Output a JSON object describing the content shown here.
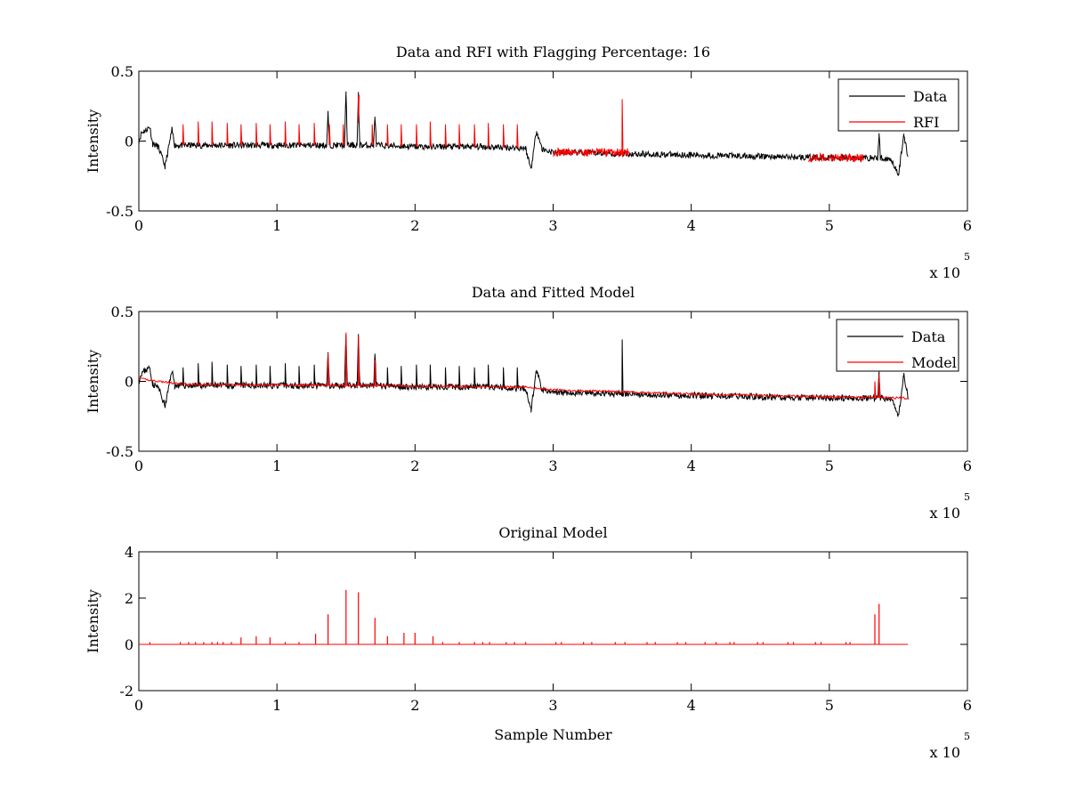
{
  "chart_data": [
    {
      "type": "line",
      "title": "Data and RFI with Flagging Percentage: 16",
      "xlabel": "",
      "ylabel": "Intensity",
      "xlim": [
        0,
        6
      ],
      "ylim": [
        -0.5,
        0.5
      ],
      "x_ticks": [
        0,
        1,
        2,
        3,
        4,
        5,
        6
      ],
      "y_ticks": [
        -0.5,
        0,
        0.5
      ],
      "x_tick_labels": [
        "0",
        "1",
        "2",
        "3",
        "4",
        "5",
        "6"
      ],
      "y_tick_labels": [
        "-0.5",
        "0",
        "0.5"
      ],
      "x_multiplier": {
        "base": "x 10",
        "exponent": "5"
      },
      "legend": {
        "position": "top-right",
        "entries": [
          "Data",
          "RFI"
        ]
      },
      "series": [
        {
          "name": "Data",
          "color": "#000000",
          "points": [
            [
              0.0,
              0.0
            ],
            [
              0.02,
              0.06
            ],
            [
              0.05,
              0.08
            ],
            [
              0.08,
              0.1
            ],
            [
              0.1,
              -0.02
            ],
            [
              0.14,
              -0.04
            ],
            [
              0.19,
              -0.18
            ],
            [
              0.24,
              0.08
            ],
            [
              0.26,
              -0.03
            ],
            [
              0.5,
              -0.03
            ],
            [
              1.0,
              -0.03
            ],
            [
              1.36,
              -0.03
            ],
            [
              1.37,
              0.2
            ],
            [
              1.38,
              -0.03
            ],
            [
              1.49,
              -0.03
            ],
            [
              1.5,
              0.35
            ],
            [
              1.51,
              -0.03
            ],
            [
              1.58,
              -0.03
            ],
            [
              1.59,
              0.33
            ],
            [
              1.6,
              -0.03
            ],
            [
              1.7,
              -0.03
            ],
            [
              1.71,
              0.18
            ],
            [
              1.72,
              -0.03
            ],
            [
              2.0,
              -0.04
            ],
            [
              2.5,
              -0.04
            ],
            [
              2.8,
              -0.05
            ],
            [
              2.84,
              -0.2
            ],
            [
              2.88,
              0.08
            ],
            [
              2.92,
              -0.06
            ],
            [
              3.0,
              -0.08
            ],
            [
              3.5,
              -0.09
            ],
            [
              4.0,
              -0.1
            ],
            [
              4.5,
              -0.11
            ],
            [
              5.0,
              -0.12
            ],
            [
              5.35,
              -0.12
            ],
            [
              5.36,
              0.05
            ],
            [
              5.37,
              -0.12
            ],
            [
              5.45,
              -0.13
            ],
            [
              5.5,
              -0.25
            ],
            [
              5.54,
              0.05
            ],
            [
              5.57,
              -0.12
            ]
          ]
        },
        {
          "name": "RFI",
          "color": "#ff0000",
          "spike_x": [
            0.32,
            0.43,
            0.53,
            0.64,
            0.74,
            0.85,
            0.95,
            1.06,
            1.16,
            1.27,
            1.38,
            1.48,
            1.59,
            1.69,
            1.8,
            1.9,
            2.01,
            2.11,
            2.22,
            2.32,
            2.43,
            2.53,
            2.64,
            2.74,
            3.5
          ],
          "spike_peak": [
            0.12,
            0.14,
            0.14,
            0.13,
            0.12,
            0.13,
            0.12,
            0.14,
            0.12,
            0.13,
            0.12,
            0.12,
            0.13,
            0.12,
            0.12,
            0.12,
            0.12,
            0.14,
            0.12,
            0.12,
            0.12,
            0.13,
            0.12,
            0.12,
            0.3
          ],
          "band_segments": [
            [
              3.0,
              3.55,
              -0.08
            ],
            [
              4.85,
              5.25,
              -0.12
            ]
          ]
        }
      ]
    },
    {
      "type": "line",
      "title": "Data and Fitted Model",
      "xlabel": "",
      "ylabel": "Intensity",
      "xlim": [
        0,
        6
      ],
      "ylim": [
        -0.5,
        0.5
      ],
      "x_ticks": [
        0,
        1,
        2,
        3,
        4,
        5,
        6
      ],
      "y_ticks": [
        -0.5,
        0,
        0.5
      ],
      "x_tick_labels": [
        "0",
        "1",
        "2",
        "3",
        "4",
        "5",
        "6"
      ],
      "y_tick_labels": [
        "-0.5",
        "0",
        "0.5"
      ],
      "x_multiplier": {
        "base": "x 10",
        "exponent": "5"
      },
      "legend": {
        "position": "top-right",
        "entries": [
          "Data",
          "Model"
        ]
      },
      "series": [
        {
          "name": "Data",
          "color": "#000000",
          "spike_x": [
            0.32,
            0.43,
            0.53,
            0.64,
            0.74,
            0.85,
            0.95,
            1.06,
            1.16,
            1.27,
            1.8,
            1.9,
            2.01,
            2.11,
            2.22,
            2.32,
            2.43,
            2.53,
            2.64,
            2.74,
            3.5
          ],
          "spike_peak": [
            0.1,
            0.13,
            0.14,
            0.12,
            0.11,
            0.12,
            0.11,
            0.13,
            0.11,
            0.12,
            0.1,
            0.11,
            0.12,
            0.12,
            0.1,
            0.11,
            0.1,
            0.12,
            0.1,
            0.1,
            0.3
          ]
        },
        {
          "name": "Model",
          "color": "#ff0000",
          "spike_x": [
            1.37,
            1.5,
            1.59,
            1.71,
            5.33,
            5.36
          ],
          "spike_peak": [
            0.2,
            0.35,
            0.33,
            0.15,
            0.0,
            0.05
          ]
        }
      ]
    },
    {
      "type": "line",
      "title": "Original Model",
      "xlabel": "Sample Number",
      "ylabel": "Intensity",
      "xlim": [
        0,
        6
      ],
      "ylim": [
        -2,
        4
      ],
      "x_ticks": [
        0,
        1,
        2,
        3,
        4,
        5,
        6
      ],
      "y_ticks": [
        -2,
        0,
        2,
        4
      ],
      "x_tick_labels": [
        "0",
        "1",
        "2",
        "3",
        "4",
        "5",
        "6"
      ],
      "y_tick_labels": [
        "-2",
        "0",
        "2",
        "4"
      ],
      "x_multiplier": {
        "base": "x 10",
        "exponent": "5"
      },
      "series": [
        {
          "name": "Original Model",
          "color": "#ff0000",
          "x_max": 5.57,
          "spike_x": [
            1.28,
            1.37,
            1.5,
            1.59,
            1.71,
            1.8,
            1.92,
            2.0,
            2.13,
            0.74,
            0.85,
            0.95,
            5.33,
            5.36
          ],
          "spike_peak": [
            0.45,
            1.3,
            2.35,
            2.25,
            1.15,
            0.35,
            0.5,
            0.5,
            0.35,
            0.3,
            0.35,
            0.3,
            1.3,
            1.75
          ],
          "small_spike_x": [
            0.08,
            0.3,
            0.36,
            0.41,
            0.47,
            0.53,
            0.57,
            0.61,
            0.67,
            1.06,
            1.16,
            2.2,
            2.32,
            2.43,
            2.49,
            2.54,
            2.66,
            2.72,
            2.8,
            3.02,
            3.06,
            3.22,
            3.28,
            3.45,
            3.52,
            3.68,
            3.74,
            3.9,
            3.96,
            4.1,
            4.18,
            4.28,
            4.31,
            4.48,
            4.52,
            4.7,
            4.74,
            4.9,
            4.94,
            5.12,
            5.15
          ],
          "small_spike_peak": 0.1
        }
      ]
    }
  ]
}
